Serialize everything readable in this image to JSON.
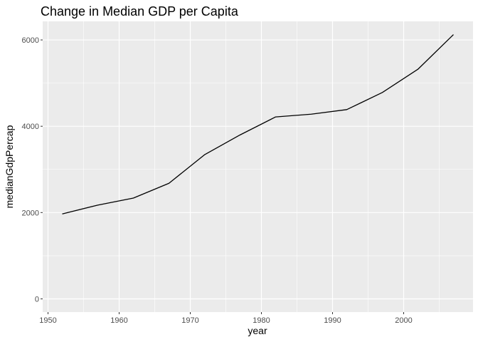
{
  "chart_data": {
    "type": "line",
    "title": "Change in Median GDP per Capita",
    "xlabel": "year",
    "ylabel": "medianGdpPercap",
    "x": [
      1952,
      1957,
      1962,
      1967,
      1972,
      1977,
      1982,
      1987,
      1992,
      1997,
      2002,
      2007
    ],
    "series": [
      {
        "values": [
          1968,
          2173,
          2335,
          2678,
          3339,
          3799,
          4216,
          4280,
          4386,
          4782,
          5320,
          6124
        ]
      }
    ],
    "xlim": [
      1949.25,
      2009.75
    ],
    "ylim": [
      -306,
      6430
    ],
    "x_ticks": [
      1950,
      1960,
      1970,
      1980,
      1990,
      2000
    ],
    "x_tick_labels": [
      "1950",
      "1960",
      "1970",
      "1980",
      "1990",
      "2000"
    ],
    "y_ticks": [
      0,
      2000,
      4000,
      6000
    ],
    "y_tick_labels": [
      "0",
      "2000",
      "4000",
      "6000"
    ],
    "grid": true,
    "legend": "none",
    "colors": {
      "panel": "#ebebeb",
      "grid": "#ffffff",
      "line": "#000000",
      "tick": "#4d4d4d"
    }
  }
}
